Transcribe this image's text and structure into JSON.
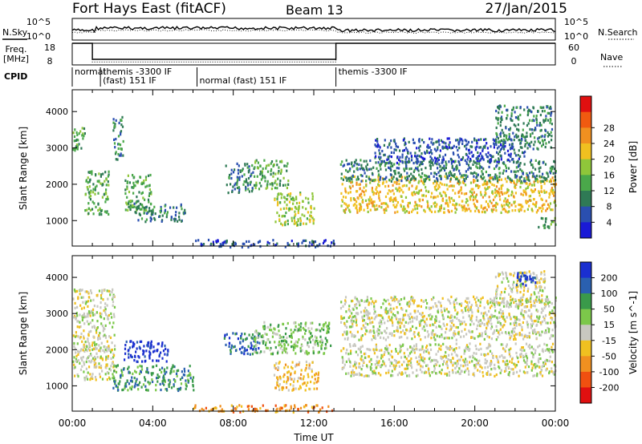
{
  "header": {
    "station": "Fort Hays East (fitACF)",
    "beam": "Beam 13",
    "date": "27/Jan/2015"
  },
  "strips": {
    "nsky_label": "N.Sky",
    "nsearch_label": "N.Search",
    "noise_ticks": [
      "10^5",
      "10^0"
    ],
    "freq_label_1": "Freq.",
    "freq_label_2": "[MHz]",
    "freq_ticks": [
      "18",
      "8"
    ],
    "nave_label": "Nave",
    "nave_ticks": [
      "60",
      "0"
    ],
    "cpid_label": "CPID",
    "cpid_segments": [
      {
        "start": 0,
        "end": 1.4,
        "lines": [
          "normal"
        ]
      },
      {
        "start": 1.4,
        "end": 6.2,
        "lines": [
          "themis -3300 IF",
          "(fast) 151 IF"
        ]
      },
      {
        "start": 6.2,
        "end": 13.1,
        "lines": [
          "",
          "normal (fast) 151 IF"
        ]
      },
      {
        "start": 13.1,
        "end": 24,
        "lines": [
          "themis -3300 IF"
        ]
      }
    ],
    "freq_trace": [
      [
        0,
        18
      ],
      [
        1.0,
        18
      ],
      [
        1.0,
        10.6
      ],
      [
        13.1,
        10.6
      ],
      [
        13.1,
        18
      ],
      [
        24,
        18
      ]
    ],
    "nave_trace": [
      [
        0,
        60
      ],
      [
        1.0,
        60
      ],
      [
        1.0,
        8
      ],
      [
        13.1,
        8
      ],
      [
        13.1,
        60
      ],
      [
        24,
        60
      ]
    ]
  },
  "chart_data": [
    {
      "type": "heatmap",
      "title": "",
      "parameter": "Power",
      "ylabel": "Slant Range [km]",
      "ylim": [
        300,
        4600
      ],
      "yticks": [
        1000,
        2000,
        3000,
        4000
      ],
      "xlim": [
        0,
        24
      ],
      "colorbar": {
        "label": "Power [dB]",
        "ticks": [
          "4",
          "8",
          "12",
          "16",
          "20",
          "24",
          "28"
        ],
        "colors": [
          "#1a1ad6",
          "#2a4fb0",
          "#2f7a55",
          "#4aa84a",
          "#8fc63a",
          "#f0c020",
          "#f09020",
          "#f05a10",
          "#e01010"
        ]
      },
      "regions": [
        {
          "t": [
            0.0,
            0.6
          ],
          "r": [
            2900,
            3600
          ],
          "level": 3
        },
        {
          "t": [
            0.6,
            1.8
          ],
          "r": [
            1200,
            2400
          ],
          "level": 3
        },
        {
          "t": [
            2.0,
            2.5
          ],
          "r": [
            2700,
            3900
          ],
          "level": 2
        },
        {
          "t": [
            2.6,
            3.9
          ],
          "r": [
            1300,
            2300
          ],
          "level": 3
        },
        {
          "t": [
            3.0,
            5.6
          ],
          "r": [
            1000,
            1500
          ],
          "level": 2
        },
        {
          "t": [
            7.6,
            9.0
          ],
          "r": [
            1800,
            2600
          ],
          "level": 2
        },
        {
          "t": [
            9.0,
            10.7
          ],
          "r": [
            1900,
            2700
          ],
          "level": 3
        },
        {
          "t": [
            10.0,
            12.0
          ],
          "r": [
            900,
            1800
          ],
          "level": 4
        },
        {
          "t": [
            13.3,
            24.0
          ],
          "r": [
            1250,
            2250
          ],
          "level": 5
        },
        {
          "t": [
            13.3,
            24.0
          ],
          "r": [
            2100,
            2700
          ],
          "level": 2
        },
        {
          "t": [
            15.0,
            22.5
          ],
          "r": [
            2600,
            3300
          ],
          "level": 1
        },
        {
          "t": [
            21.0,
            23.8
          ],
          "r": [
            3000,
            4200
          ],
          "level": 2
        },
        {
          "t": [
            23.0,
            24.0
          ],
          "r": [
            800,
            1100
          ],
          "level": 3
        },
        {
          "t": [
            6.0,
            13.0
          ],
          "r": [
            300,
            500
          ],
          "level": 1
        }
      ]
    },
    {
      "type": "heatmap",
      "title": "",
      "parameter": "Velocity",
      "xlabel": "Time UT",
      "ylabel": "Slant Range [km]",
      "ylim": [
        300,
        4600
      ],
      "yticks": [
        1000,
        2000,
        3000,
        4000
      ],
      "xlim": [
        0,
        24
      ],
      "xticks": [
        "00:00",
        "04:00",
        "08:00",
        "12:00",
        "16:00",
        "20:00",
        "00:00"
      ],
      "colorbar": {
        "label": "Velocity [m s^-1]",
        "ticks": [
          "200",
          "100",
          "50",
          "15",
          "-15",
          "-50",
          "-100",
          "-200"
        ],
        "colors": [
          "#1a2fd0",
          "#2a60b0",
          "#3a9a4a",
          "#7cc84a",
          "#c8c8c0",
          "#f0c020",
          "#f09020",
          "#f05010",
          "#e01010"
        ]
      },
      "regions": [
        {
          "t": [
            0.0,
            2.1
          ],
          "r": [
            1200,
            3700
          ],
          "level": 4
        },
        {
          "t": [
            2.5,
            4.8
          ],
          "r": [
            1700,
            2300
          ],
          "level": 0
        },
        {
          "t": [
            2.0,
            6.0
          ],
          "r": [
            900,
            1600
          ],
          "level": 2
        },
        {
          "t": [
            7.5,
            9.3
          ],
          "r": [
            1900,
            2500
          ],
          "level": 1
        },
        {
          "t": [
            9.0,
            12.8
          ],
          "r": [
            1900,
            2800
          ],
          "level": 3
        },
        {
          "t": [
            10.0,
            12.2
          ],
          "r": [
            900,
            1700
          ],
          "level": 5
        },
        {
          "t": [
            13.3,
            24.0
          ],
          "r": [
            1300,
            2200
          ],
          "level": 4
        },
        {
          "t": [
            13.3,
            24.0
          ],
          "r": [
            2300,
            3500
          ],
          "level": 4
        },
        {
          "t": [
            21.0,
            23.5
          ],
          "r": [
            3200,
            4200
          ],
          "level": 4
        },
        {
          "t": [
            22.0,
            23.0
          ],
          "r": [
            3800,
            4200
          ],
          "level": 0
        },
        {
          "t": [
            6.0,
            13.0
          ],
          "r": [
            300,
            500
          ],
          "level": 6
        }
      ]
    }
  ]
}
